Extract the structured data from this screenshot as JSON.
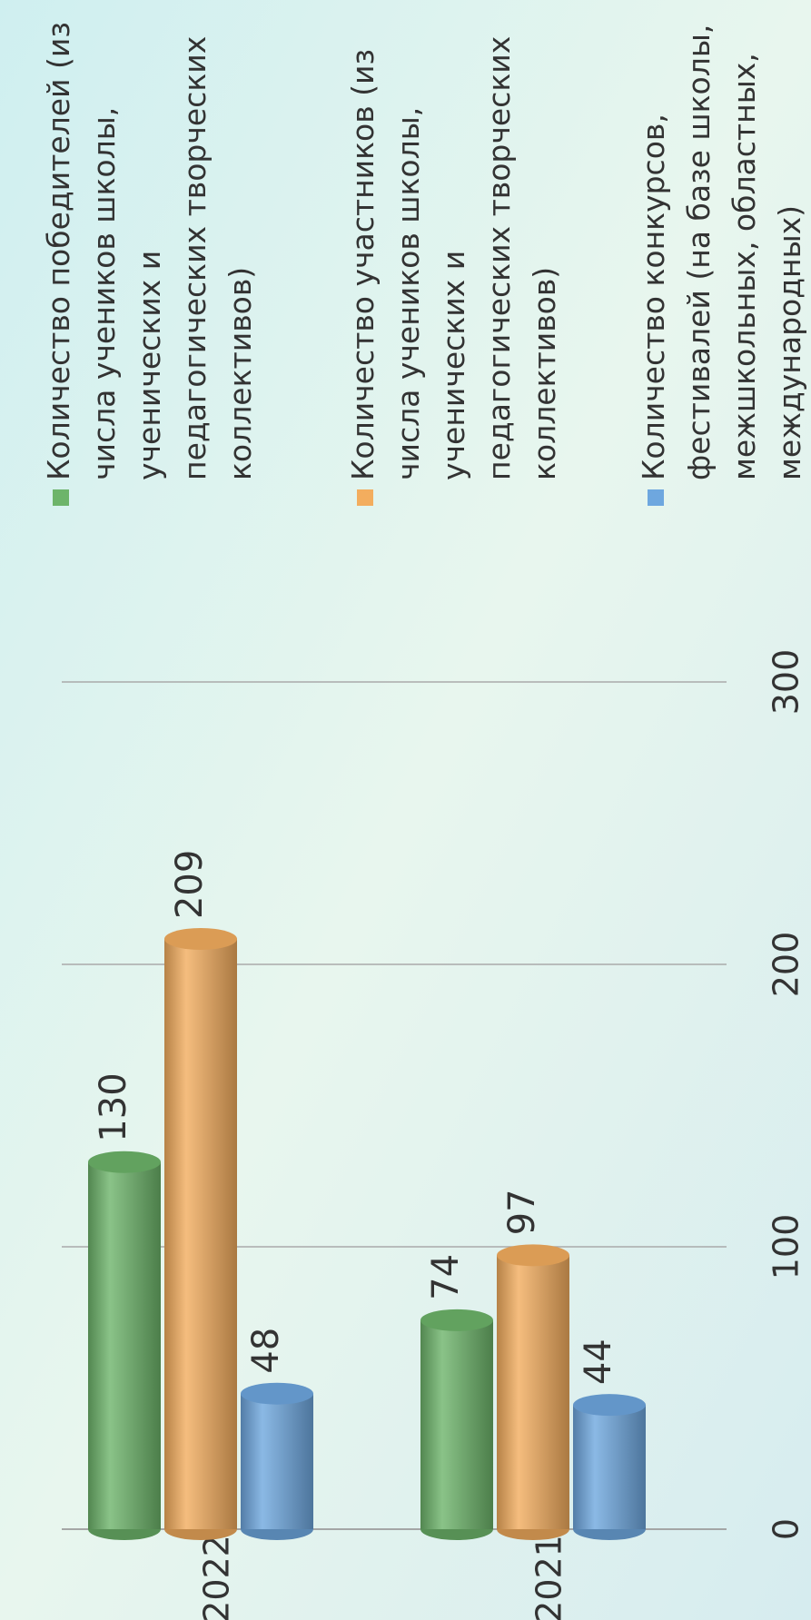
{
  "chart_data": {
    "type": "bar",
    "orientation": "horizontal",
    "categories": [
      "2022 г.",
      "2021 г."
    ],
    "series": [
      {
        "name": "Количество победителей (из числа учеников школы, ученических и педагогических творческих коллективов)",
        "color": "#6db46a",
        "values": [
          130,
          74
        ]
      },
      {
        "name": "Количество участников (из числа учеников школы, ученических и педагогических творческих коллективов)",
        "color": "#f3ad5e",
        "values": [
          209,
          97
        ]
      },
      {
        "name": "Количество конкурсов, фестивалей (на базе школы, межшкольных, областных, международных)",
        "color": "#6ea7df",
        "values": [
          48,
          44
        ]
      }
    ],
    "xlim": [
      0,
      300
    ],
    "xticks": [
      0,
      100,
      200,
      300
    ],
    "grid": true,
    "legend": "right"
  }
}
